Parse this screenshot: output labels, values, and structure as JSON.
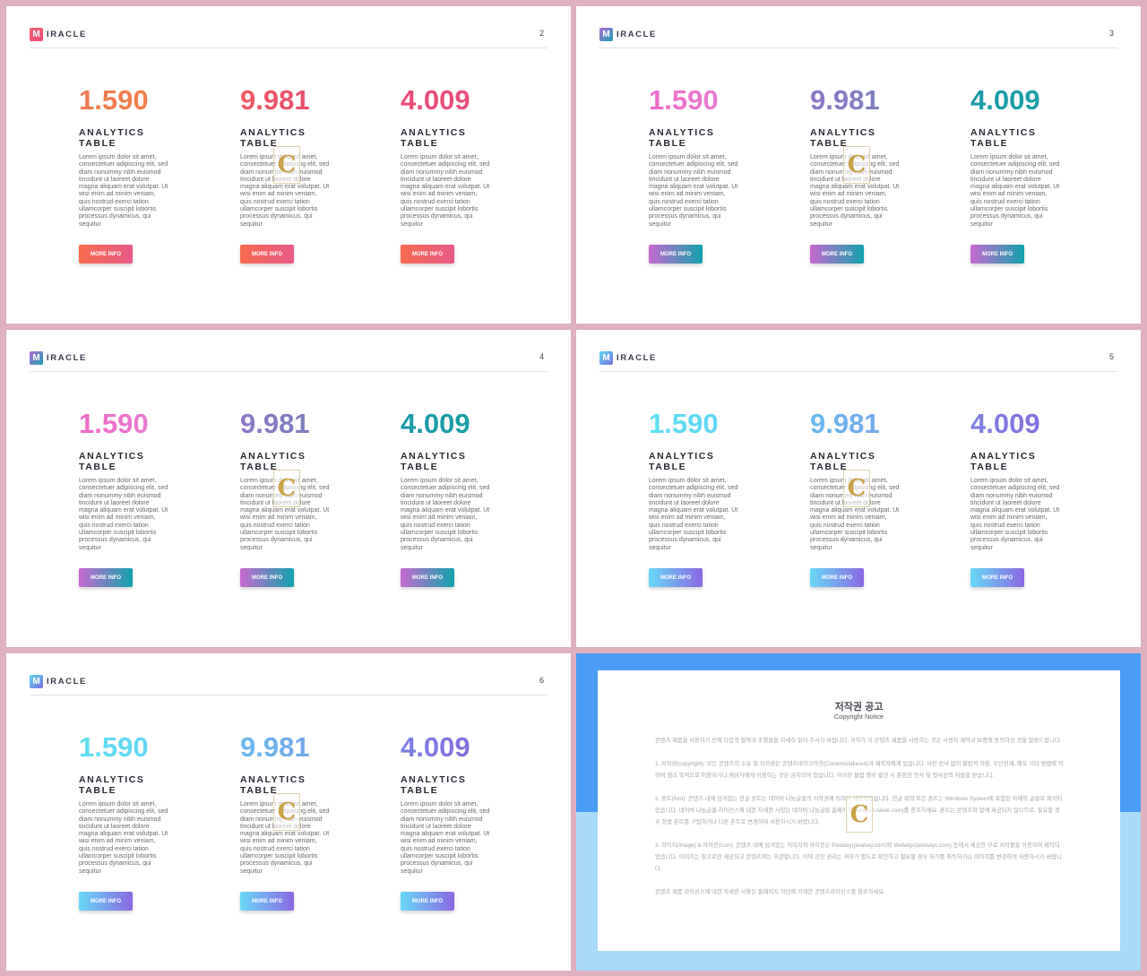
{
  "slides": [
    {
      "page": "2",
      "logo_letter": "M",
      "logo_text": "IRACLE",
      "logo_gradient": [
        "#f15c6f",
        "#f24d7c"
      ],
      "columns": [
        {
          "value": "1.590",
          "title": "ANALYTICS TABLE",
          "number_gradient": [
            "#f27a54",
            "#f0804a"
          ],
          "button_gradient": [
            "#f76b4f",
            "#e85a88"
          ]
        },
        {
          "value": "9.981",
          "title": "ANALYTICS TABLE",
          "number_gradient": [
            "#ef5864",
            "#e84f6e"
          ],
          "button_gradient": [
            "#f76b4f",
            "#e85a88"
          ]
        },
        {
          "value": "4.009",
          "title": "ANALYTICS TABLE",
          "number_gradient": [
            "#e94a76",
            "#e6507a"
          ],
          "button_gradient": [
            "#f76b4f",
            "#e85a88"
          ]
        }
      ]
    },
    {
      "page": "3",
      "logo_letter": "M",
      "logo_text": "IRACLE",
      "logo_gradient": [
        "#b06bd6",
        "#1b9fb0"
      ],
      "columns": [
        {
          "value": "1.590",
          "title": "ANALYTICS TABLE",
          "number_gradient": [
            "#f06bc6",
            "#e87bd0"
          ],
          "button_gradient": [
            "#c76ad0",
            "#12a2ac"
          ]
        },
        {
          "value": "9.981",
          "title": "ANALYTICS TABLE",
          "number_gradient": [
            "#8c78c6",
            "#7d7fbd"
          ],
          "button_gradient": [
            "#c76ad0",
            "#12a2ac"
          ]
        },
        {
          "value": "4.009",
          "title": "ANALYTICS TABLE",
          "number_gradient": [
            "#1b98a8",
            "#1aa0a6"
          ],
          "button_gradient": [
            "#c76ad0",
            "#12a2ac"
          ]
        }
      ]
    },
    {
      "page": "4",
      "logo_letter": "M",
      "logo_text": "IRACLE",
      "logo_gradient": [
        "#b06bd6",
        "#1b9fb0"
      ],
      "columns": [
        {
          "value": "1.590",
          "title": "ANALYTICS TABLE",
          "number_gradient": [
            "#f06bc6",
            "#e87bd0"
          ],
          "button_gradient": [
            "#c76ad0",
            "#12a2ac"
          ]
        },
        {
          "value": "9.981",
          "title": "ANALYTICS TABLE",
          "number_gradient": [
            "#8c78c6",
            "#7d7fbd"
          ],
          "button_gradient": [
            "#c76ad0",
            "#12a2ac"
          ]
        },
        {
          "value": "4.009",
          "title": "ANALYTICS TABLE",
          "number_gradient": [
            "#1b98a8",
            "#1aa0a6"
          ],
          "button_gradient": [
            "#c76ad0",
            "#12a2ac"
          ]
        }
      ]
    },
    {
      "page": "5",
      "logo_letter": "M",
      "logo_text": "IRACLE",
      "logo_gradient": [
        "#5fd6f2",
        "#7a6fe0"
      ],
      "columns": [
        {
          "value": "1.590",
          "title": "ANALYTICS TABLE",
          "number_gradient": [
            "#5ee0f0",
            "#62d6f4"
          ],
          "button_gradient": [
            "#68d8f6",
            "#8a68e2"
          ]
        },
        {
          "value": "9.981",
          "title": "ANALYTICS TABLE",
          "number_gradient": [
            "#6bb8ee",
            "#74a8ea"
          ],
          "button_gradient": [
            "#68d8f6",
            "#8a68e2"
          ]
        },
        {
          "value": "4.009",
          "title": "ANALYTICS TABLE",
          "number_gradient": [
            "#7d80e2",
            "#8470e0"
          ],
          "button_gradient": [
            "#68d8f6",
            "#8a68e2"
          ]
        }
      ]
    },
    {
      "page": "6",
      "logo_letter": "M",
      "logo_text": "IRACLE",
      "logo_gradient": [
        "#5fd6f2",
        "#7a6fe0"
      ],
      "columns": [
        {
          "value": "1.590",
          "title": "ANALYTICS TABLE",
          "number_gradient": [
            "#5ee0f0",
            "#62d6f4"
          ],
          "button_gradient": [
            "#68d8f6",
            "#8a68e2"
          ]
        },
        {
          "value": "9.981",
          "title": "ANALYTICS TABLE",
          "number_gradient": [
            "#6bb8ee",
            "#74a8ea"
          ],
          "button_gradient": [
            "#68d8f6",
            "#8a68e2"
          ]
        },
        {
          "value": "4.009",
          "title": "ANALYTICS TABLE",
          "number_gradient": [
            "#7d80e2",
            "#8470e0"
          ],
          "button_gradient": [
            "#68d8f6",
            "#8a68e2"
          ]
        }
      ]
    }
  ],
  "body_text": "Lorem ipsum dolor sit amet, consectetuer adipiscing elit, sed diam nonummy nibh euismod tincidunt ut laoreet dolore magna aliquam erat volutpat. Ut wisi enim ad minim veniam, quis nostrud exerci tation ullamcorper suscipit lobortis processus dynamicus, qui sequitur",
  "button_label": "MORE INFO",
  "watermark_glyph": "C",
  "notice": {
    "title": "저작권 공고",
    "subtitle": "Copyright Notice",
    "paragraphs": [
      "콘텐츠 제품을 사용하기 전에 다음의 협약과 조항들을 자세히 읽어 주시기 바랍니다. 귀하가 이 콘텐츠 제품을 사용하는 것은 사용자 계약과 보증에 동의하신 것을 말씀드립니다.",
      "1. 저작권(copyright): 모든 콘텐츠의 소유 및 저작권은 콘텐츠테이크아웃(Contentstakeout)과 제작자에게 있습니다. 사전 승낙 없이 불법적 이용, 무단전재, 배포 기타 방법에 의하여 영리 목적으로 이용하거나 제삼자에게 이용하는 것은 금지되어 있습니다. 이러한 불법 행위 발견 시 준엄한 민사 및 형사상의 처벌을 받습니다.",
      "2. 폰트(font): 콘텐츠 내에 담겨있는 한글 폰트는 네이버 나눔글꼴의 저작권에 의하여 제작되었습니다. 한글 외의 모든 폰트는 Windows System에 포함된 자체의 글꼴로 제작되었습니다. 네이버 나눔글꼴 라이선스에 대한 자세한 사항은 네이버 나눔글꼴 홈페이지(hangeul.naver.com)를 참조하세요. 폰트는 콘텐츠와 함께 제공되지 않으므로, 필요할 경우 정품 폰트를 구입하거나 다른 폰트로 변경하여 사용하시기 바랍니다.",
      "3. 이미지(image) & 아이콘(icon): 콘텐츠 내에 담겨있는 이미지와 아이콘은 Pixabay(pixabay.com)와 Webalys(webalys.com) 등에서 제공한 무료 저작물을 이용하여 제작되었습니다. 이미지는 참고로만 제공되고 콘텐츠와는 무관합니다. 이에 관한 권리는 귀하가 별도로 확인하고 필요할 경우 허가를 취득하거나 이미지를 변경하여 사용하시기 바랍니다.",
      "콘텐츠 제품 라이선스에 대한 자세한 사항은 홈페이지 하단에 기재한 콘텐츠라이선스를 참조하세요."
    ]
  }
}
